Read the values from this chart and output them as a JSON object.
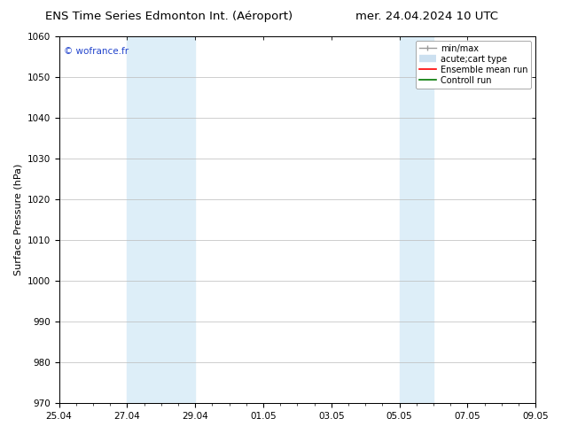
{
  "title_left": "ENS Time Series Edmonton Int. (Aéroport)",
  "title_right": "mer. 24.04.2024 10 UTC",
  "ylabel": "Surface Pressure (hPa)",
  "ylim": [
    970,
    1060
  ],
  "yticks": [
    970,
    980,
    990,
    1000,
    1010,
    1020,
    1030,
    1040,
    1050,
    1060
  ],
  "xtick_labels": [
    "25.04",
    "27.04",
    "29.04",
    "01.05",
    "03.05",
    "05.05",
    "07.05",
    "09.05"
  ],
  "xtick_positions": [
    0,
    2,
    4,
    6,
    8,
    10,
    12,
    14
  ],
  "xlim": [
    0,
    14
  ],
  "shaded_bands": [
    {
      "x_start": 2,
      "x_end": 4,
      "color": "#ddeef8"
    },
    {
      "x_start": 10,
      "x_end": 11,
      "color": "#ddeef8"
    }
  ],
  "watermark": "© wofrance.fr",
  "watermark_color": "#2244cc",
  "background_color": "#ffffff",
  "plot_bg_color": "#ffffff",
  "grid_color": "#bbbbbb",
  "legend_items": [
    {
      "label": "min/max",
      "color": "#999999",
      "lw": 1.0,
      "style": "minmax"
    },
    {
      "label": "acute;cart type",
      "color": "#cce0f0",
      "lw": 6,
      "style": "thick"
    },
    {
      "label": "Ensemble mean run",
      "color": "#ff0000",
      "lw": 1.2,
      "style": "line"
    },
    {
      "label": "Controll run",
      "color": "#007700",
      "lw": 1.2,
      "style": "line"
    }
  ],
  "title_fontsize": 9.5,
  "axis_label_fontsize": 8,
  "tick_fontsize": 7.5,
  "legend_fontsize": 7
}
